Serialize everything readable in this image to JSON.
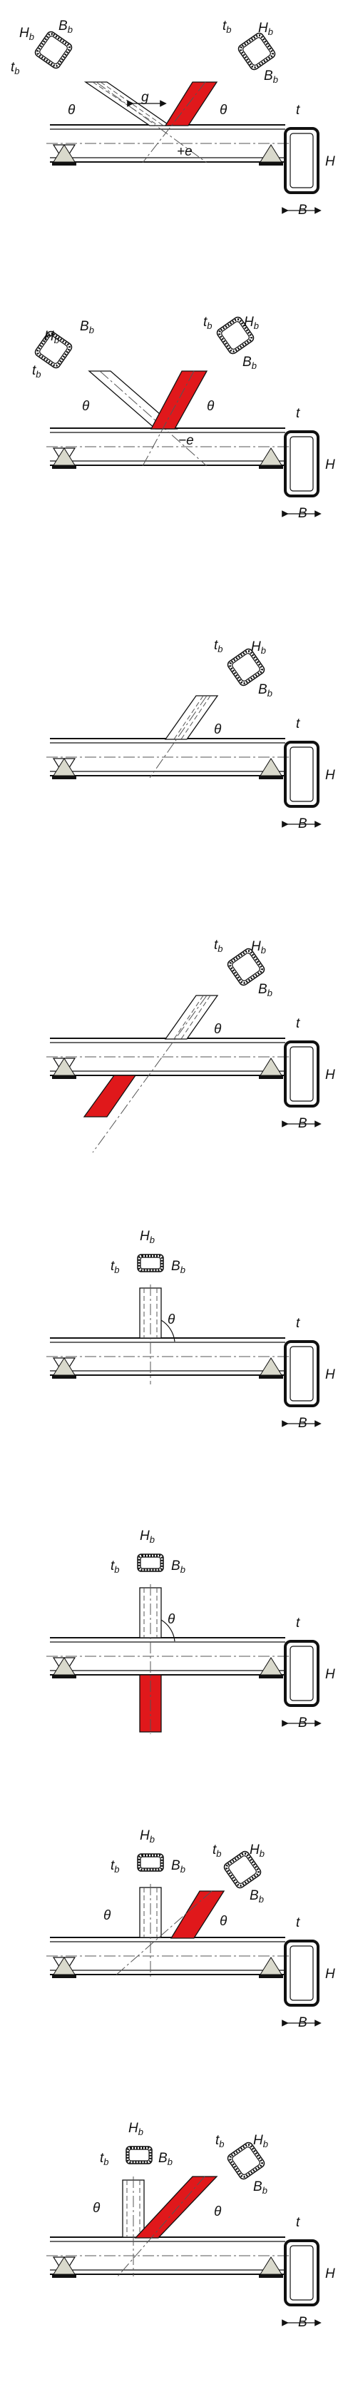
{
  "symbols": {
    "t": "t",
    "H": "H",
    "B": "B",
    "theta": "θ",
    "g": "g",
    "plus_e": "+e",
    "minus_e": "−e",
    "b_sub": "b"
  },
  "colors": {
    "highlight": "#e0181b",
    "line": "#111111",
    "support_fill": "#d9d9cc",
    "support_base": "#111111"
  },
  "panels": [
    {
      "id": "k-gap",
      "title": ""
    },
    {
      "id": "k-overlap",
      "title": ""
    },
    {
      "id": "y-joint",
      "title": ""
    },
    {
      "id": "x-joint-inclined",
      "title": ""
    },
    {
      "id": "t-joint",
      "title": ""
    },
    {
      "id": "x-joint-90",
      "title": ""
    },
    {
      "id": "n-joint",
      "title": ""
    },
    {
      "id": "n-joint-overlap",
      "title": ""
    }
  ]
}
